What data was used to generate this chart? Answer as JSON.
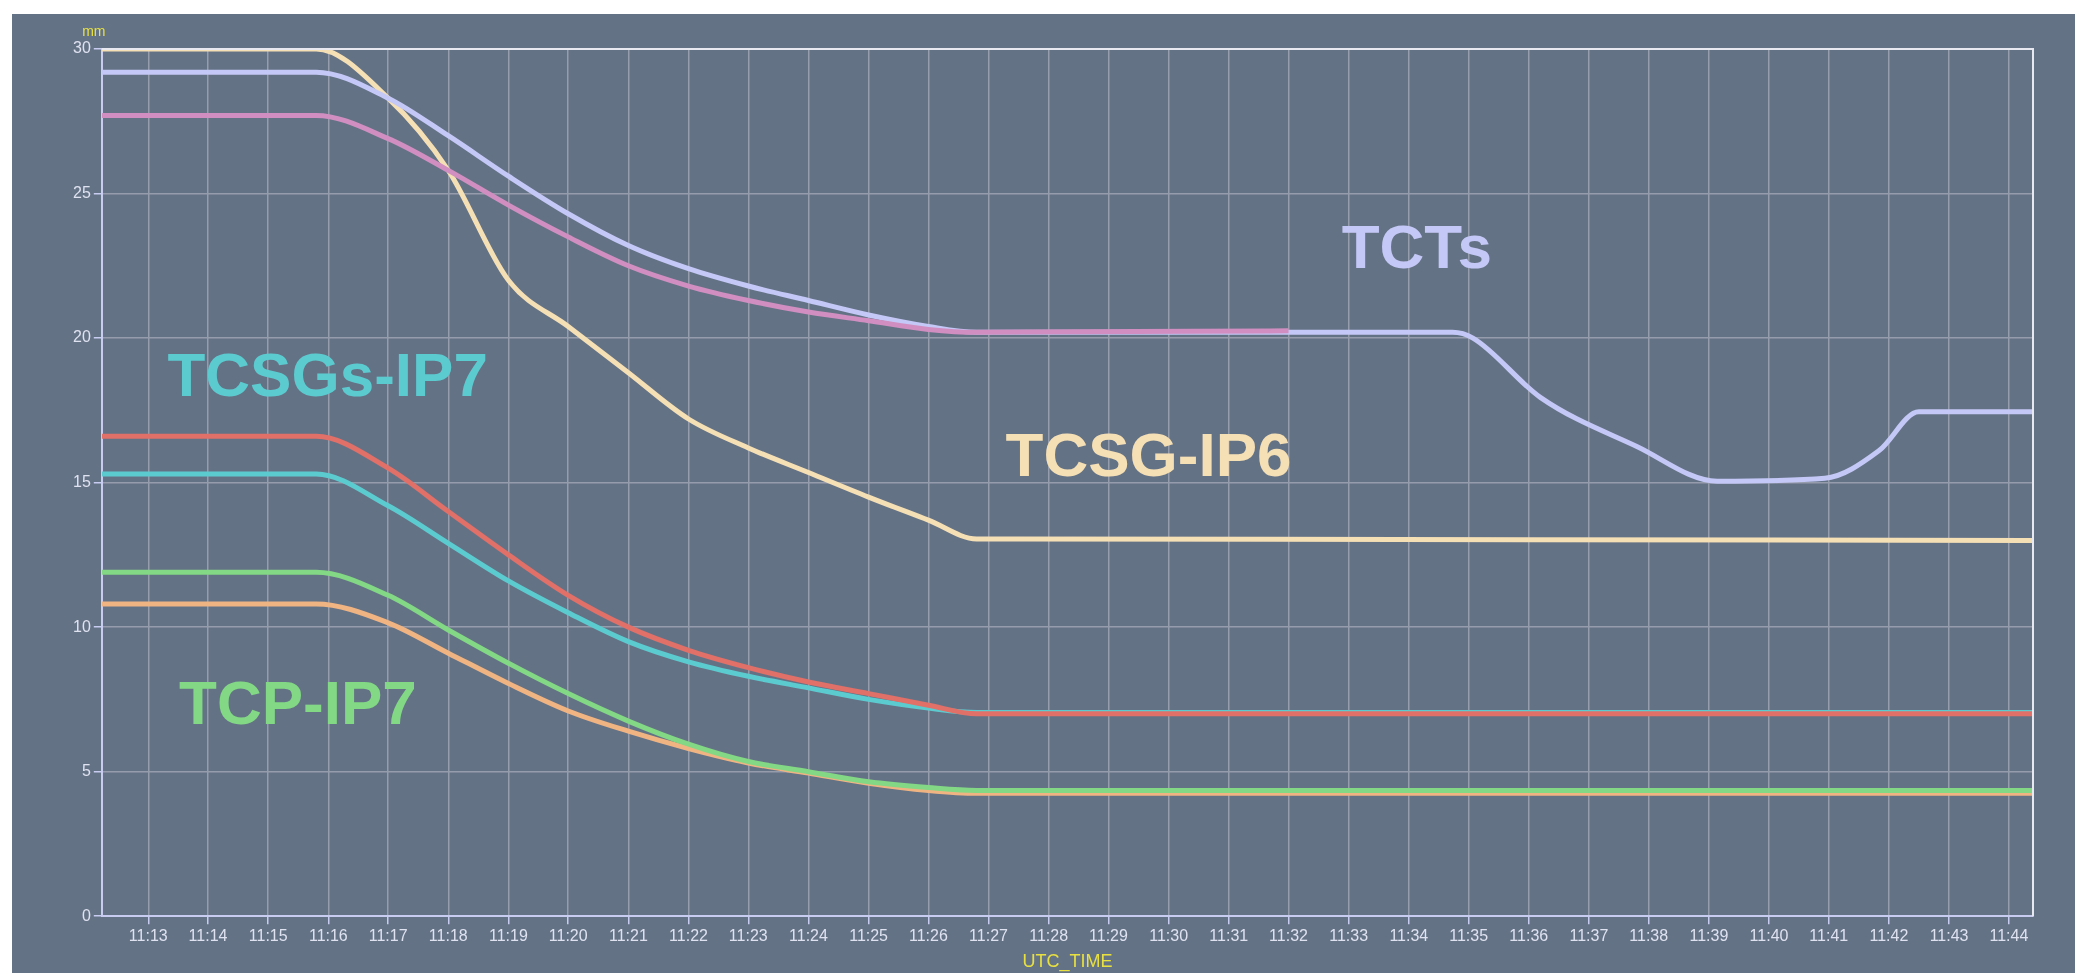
{
  "chart_data": {
    "type": "line",
    "xlabel": "UTC_TIME",
    "ylabel": "mm",
    "x": [
      11.2038,
      11.2633,
      11.2833,
      11.3,
      11.3167,
      11.3333,
      11.35,
      11.3667,
      11.3833,
      11.4,
      11.4167,
      11.4333,
      11.4467,
      11.74
    ],
    "series": [
      {
        "color": "#d08fc0",
        "x": [
          11.2038,
          11.2633,
          11.2833,
          11.3,
          11.3167,
          11.3333,
          11.35,
          11.3667,
          11.3833,
          11.4,
          11.4167,
          11.4333,
          11.4467,
          11.5333
        ],
        "values": [
          27.7,
          27.7,
          26.9,
          25.8,
          24.6,
          23.5,
          22.5,
          21.8,
          21.3,
          20.9,
          20.6,
          20.3,
          20.2,
          20.25
        ]
      },
      {
        "name": "TCTs",
        "color": "#c4c8f6",
        "x": [
          11.2038,
          11.2633,
          11.2833,
          11.3,
          11.3167,
          11.3333,
          11.35,
          11.3667,
          11.3833,
          11.4,
          11.4167,
          11.4333,
          11.4467,
          11.5788,
          11.5845,
          11.6032,
          11.63,
          11.6523,
          11.6822,
          11.6972,
          11.7083,
          11.74
        ],
        "values": [
          29.2,
          29.2,
          28.3,
          27.0,
          25.6,
          24.3,
          23.2,
          22.4,
          21.8,
          21.3,
          20.8,
          20.4,
          20.2,
          20.2,
          20.0,
          17.95,
          16.25,
          15.05,
          15.15,
          16.1,
          17.45,
          17.45
        ]
      },
      {
        "name": "TCSG-IP6",
        "color": "#f5dfb5",
        "values": [
          30,
          30,
          28.3,
          25.8,
          22.0,
          20.4,
          18.8,
          17.2,
          16.2,
          15.35,
          14.5,
          13.7,
          13.05,
          13.0
        ]
      },
      {
        "color": "#e07068",
        "values": [
          16.6,
          16.6,
          15.5,
          14.0,
          12.5,
          11.1,
          10.0,
          9.2,
          8.6,
          8.1,
          7.7,
          7.3,
          7.0,
          7.0
        ]
      },
      {
        "name": "TCSGs-IP7",
        "color": "#5ccbd0",
        "values": [
          15.3,
          15.3,
          14.2,
          12.9,
          11.6,
          10.5,
          9.5,
          8.8,
          8.3,
          7.9,
          7.5,
          7.2,
          7.05,
          7.05
        ]
      },
      {
        "name": "TCP-IP7",
        "color": "#82d884",
        "values": [
          11.9,
          11.9,
          11.1,
          9.9,
          8.75,
          7.7,
          6.75,
          5.95,
          5.35,
          5.0,
          4.65,
          4.45,
          4.35,
          4.35
        ]
      },
      {
        "color": "#f0b482",
        "values": [
          10.8,
          10.8,
          10.15,
          9.1,
          8.05,
          7.1,
          6.4,
          5.8,
          5.3,
          4.95,
          4.6,
          4.35,
          4.25,
          4.25
        ]
      }
    ],
    "xlim": [
      11.2038,
      11.74
    ],
    "xticks": [
      {
        "value": 11.2167,
        "label": "11:13"
      },
      {
        "value": 11.2333,
        "label": "11:14"
      },
      {
        "value": 11.25,
        "label": "11:15"
      },
      {
        "value": 11.2667,
        "label": "11:16"
      },
      {
        "value": 11.2833,
        "label": "11:17"
      },
      {
        "value": 11.3,
        "label": "11:18"
      },
      {
        "value": 11.3167,
        "label": "11:19"
      },
      {
        "value": 11.3333,
        "label": "11:20"
      },
      {
        "value": 11.35,
        "label": "11:21"
      },
      {
        "value": 11.3667,
        "label": "11:22"
      },
      {
        "value": 11.3833,
        "label": "11:23"
      },
      {
        "value": 11.4,
        "label": "11:24"
      },
      {
        "value": 11.4167,
        "label": "11:25"
      },
      {
        "value": 11.4333,
        "label": "11:26"
      },
      {
        "value": 11.45,
        "label": "11:27"
      },
      {
        "value": 11.4667,
        "label": "11:28"
      },
      {
        "value": 11.4833,
        "label": "11:29"
      },
      {
        "value": 11.5,
        "label": "11:30"
      },
      {
        "value": 11.5167,
        "label": "11:31"
      },
      {
        "value": 11.5333,
        "label": "11:32"
      },
      {
        "value": 11.55,
        "label": "11:33"
      },
      {
        "value": 11.5667,
        "label": "11:34"
      },
      {
        "value": 11.5833,
        "label": "11:35"
      },
      {
        "value": 11.6,
        "label": "11:36"
      },
      {
        "value": 11.6167,
        "label": "11:37"
      },
      {
        "value": 11.6333,
        "label": "11:38"
      },
      {
        "value": 11.65,
        "label": "11:39"
      },
      {
        "value": 11.6667,
        "label": "11:40"
      },
      {
        "value": 11.6833,
        "label": "11:41"
      },
      {
        "value": 11.7,
        "label": "11:42"
      },
      {
        "value": 11.7167,
        "label": "11:43"
      },
      {
        "value": 11.7333,
        "label": "11:44"
      }
    ],
    "ylim": [
      0,
      30
    ],
    "yticks": [
      0,
      5,
      10,
      15,
      20,
      25,
      30
    ],
    "grid": true,
    "legend": false,
    "marker": "none",
    "line_style": "solid"
  }
}
